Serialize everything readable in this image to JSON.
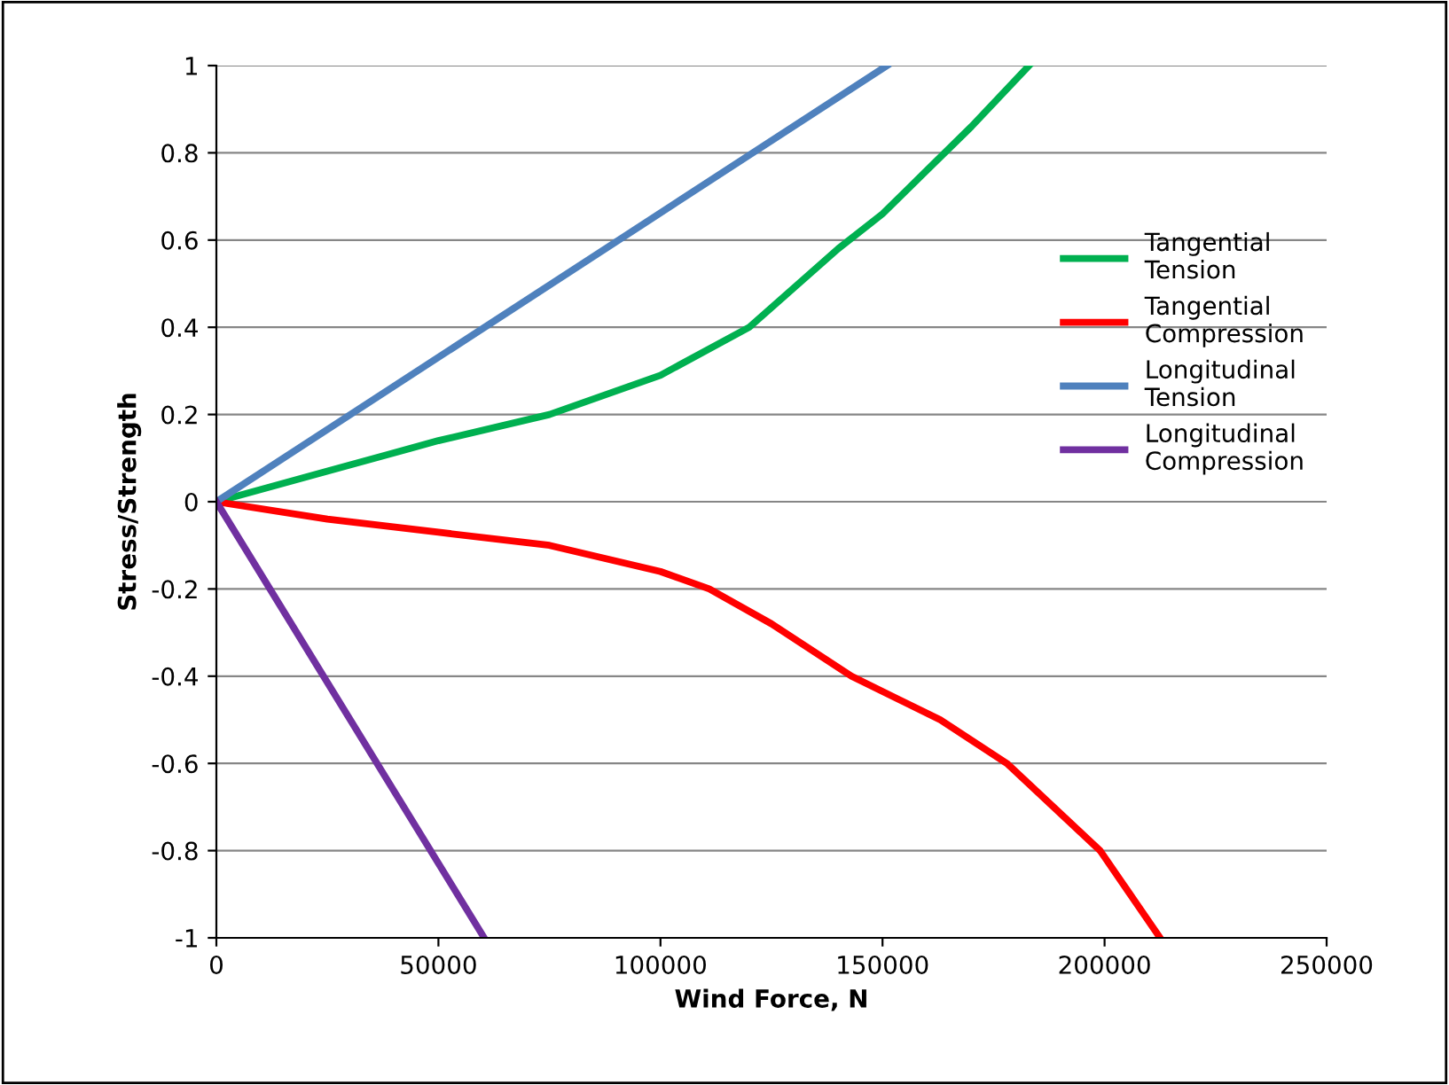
{
  "chart_data": {
    "type": "line",
    "xlabel": "Wind Force, N",
    "ylabel": "Stress/Strength",
    "xlim": [
      0,
      250000
    ],
    "xticks": [
      0,
      50000,
      100000,
      150000,
      200000,
      250000
    ],
    "ylim": [
      -1,
      1
    ],
    "yticks": [
      -1,
      -0.8,
      -0.6,
      -0.4,
      -0.2,
      0,
      0.2,
      0.4,
      0.6,
      0.8,
      1
    ],
    "grid": "y",
    "legend": "right",
    "marker": "none",
    "line_style": "solid",
    "series": [
      {
        "name": "Tangential Tension",
        "color": "#00b050",
        "x": [
          0,
          25000,
          50000,
          75000,
          100000,
          120000,
          140000,
          150000,
          160000,
          170000,
          183000
        ],
        "values": [
          0,
          0.07,
          0.14,
          0.2,
          0.29,
          0.4,
          0.58,
          0.66,
          0.76,
          0.86,
          1
        ]
      },
      {
        "name": "Tangential Compression",
        "color": "#ff0000",
        "x": [
          0,
          25000,
          50000,
          75000,
          100000,
          111000,
          125000,
          143000,
          163000,
          178000,
          199000,
          212500
        ],
        "values": [
          0,
          -0.04,
          -0.07,
          -0.1,
          -0.16,
          -0.2,
          -0.28,
          -0.4,
          -0.5,
          -0.6,
          -0.8,
          -1
        ]
      },
      {
        "name": "Longitudinal Tension",
        "color": "#4f81bd",
        "x": [
          0,
          151000
        ],
        "values": [
          0,
          1
        ]
      },
      {
        "name": "Longitudinal Compression",
        "color": "#7030a0",
        "x": [
          0,
          60300
        ],
        "values": [
          0,
          -1
        ]
      }
    ]
  }
}
